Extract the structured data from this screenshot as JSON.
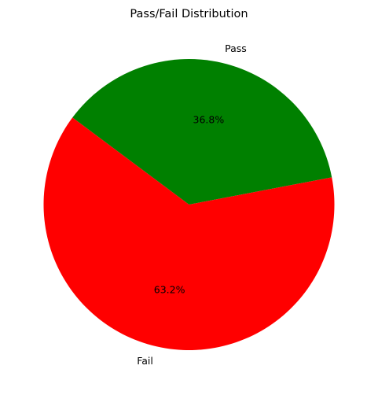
{
  "chart_data": {
    "type": "pie",
    "title": "Pass/Fail Distribution",
    "slices": [
      {
        "label": "Pass",
        "percent": 36.8,
        "percent_label": "36.8%",
        "color": "#008000"
      },
      {
        "label": "Fail",
        "percent": 63.2,
        "percent_label": "63.2%",
        "color": "#ff0000"
      }
    ],
    "legend": "none",
    "grid": false
  }
}
